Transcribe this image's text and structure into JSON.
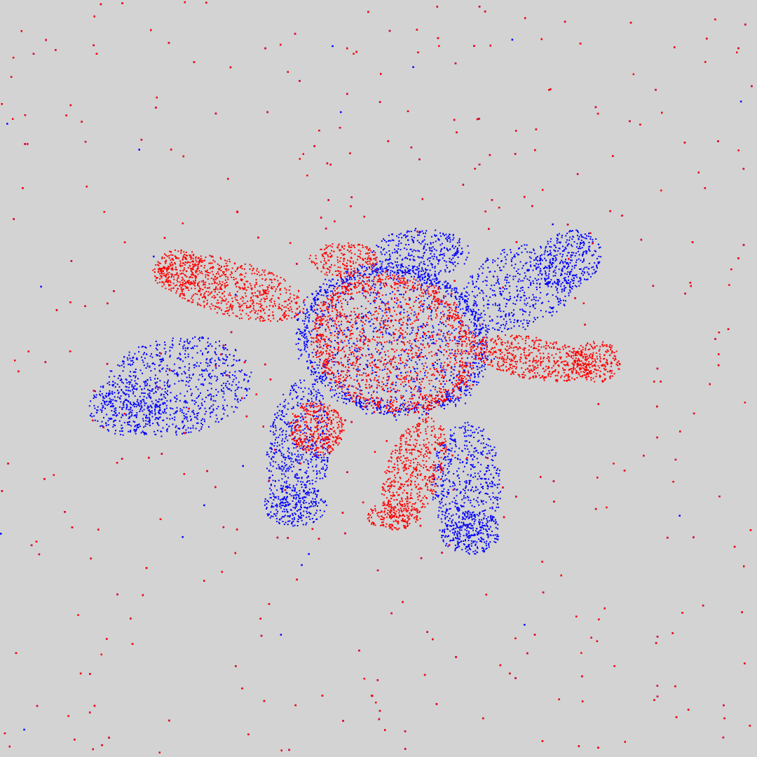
{
  "scene": {
    "description_kind": "point-cloud-registration-view",
    "background_color": "#d3d3d3",
    "clouds": [
      {
        "id": "source",
        "color": "#0000ff",
        "shape": "turtle",
        "role": "blue point cloud"
      },
      {
        "id": "target",
        "color": "#ff0000",
        "shape": "turtle",
        "role": "red point cloud"
      }
    ],
    "has_outlier_noise": true
  }
}
